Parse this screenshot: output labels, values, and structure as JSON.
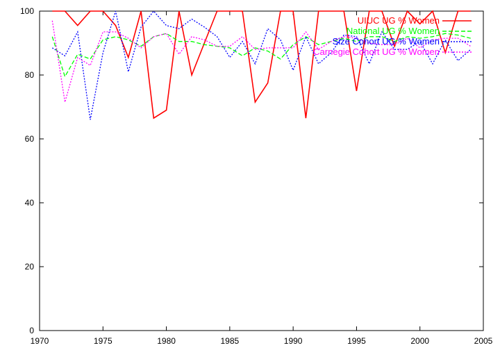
{
  "chart_data": {
    "type": "line",
    "xlim": [
      1970,
      2005
    ],
    "ylim": [
      0,
      100
    ],
    "xticks": [
      1970,
      1975,
      1980,
      1985,
      1990,
      1995,
      2000,
      2005
    ],
    "yticks": [
      0,
      20,
      40,
      60,
      80,
      100
    ],
    "grid": false,
    "legend_position": "top-right",
    "x": [
      1971,
      1972,
      1973,
      1974,
      1975,
      1976,
      1977,
      1978,
      1979,
      1980,
      1981,
      1982,
      1983,
      1984,
      1985,
      1986,
      1987,
      1988,
      1989,
      1990,
      1991,
      1992,
      1993,
      1994,
      1995,
      1996,
      1997,
      1998,
      1999,
      2000,
      2001,
      2002,
      2003,
      2004
    ],
    "series": [
      {
        "name": "UIUC UG % Women",
        "color": "#ff0000",
        "dash": "solid",
        "values": [
          100,
          100,
          95.5,
          100,
          100,
          95.5,
          85.5,
          100,
          66.5,
          69,
          100,
          80,
          90,
          100,
          100,
          100,
          71.5,
          77.5,
          100,
          100,
          66.5,
          100,
          100,
          100,
          75,
          100,
          100,
          89,
          100,
          96,
          100,
          87,
          100,
          100
        ]
      },
      {
        "name": "National UG % Women",
        "color": "#00ff00",
        "dash": "dashed",
        "values": [
          92,
          79.5,
          86.5,
          85,
          91,
          92,
          91,
          89,
          92,
          93,
          90.5,
          90.5,
          89.5,
          89,
          88.5,
          86,
          88.5,
          87.5,
          85,
          89.5,
          92,
          89.5,
          90.5,
          91.5,
          90.5,
          92,
          92,
          90.5,
          92,
          91.5,
          92,
          93,
          92.5,
          91.5
        ]
      },
      {
        "name": "Size Cohort UG % Women",
        "color": "#0000ff",
        "dash": "dotted",
        "values": [
          88.5,
          86,
          93.5,
          66,
          87,
          100,
          81,
          95,
          100,
          95.5,
          94.5,
          97.5,
          95,
          92,
          85.5,
          90.5,
          83.5,
          94.5,
          91,
          81.5,
          92,
          83.5,
          87,
          92.5,
          92,
          83.5,
          93.5,
          88,
          88,
          90.5,
          83.5,
          91,
          84.5,
          88
        ]
      },
      {
        "name": "Carnegie Cohort UG % Women",
        "color": "#ff00ff",
        "dash": "dotted",
        "values": [
          97,
          71.5,
          85.5,
          83,
          93.5,
          93.5,
          91.5,
          88.5,
          92,
          93,
          86.5,
          92,
          91,
          89,
          89,
          92,
          88,
          88.5,
          88.5,
          88.5,
          93.5,
          88,
          90.5,
          92,
          91.5,
          90,
          89.5,
          89.5,
          91.5,
          88.5,
          91,
          91.5,
          91.5,
          89
        ]
      }
    ]
  }
}
